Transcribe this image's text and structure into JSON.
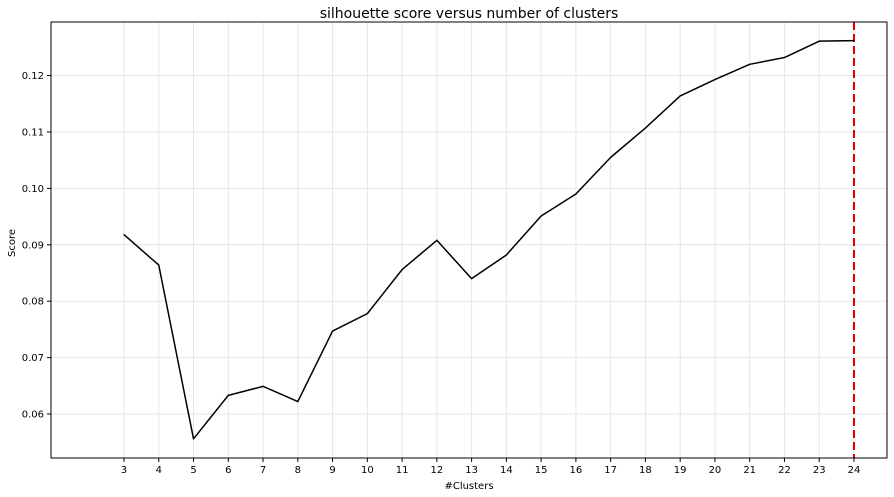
{
  "chart_data": {
    "type": "line",
    "title": "silhouette score versus number of clusters",
    "xlabel": "#Clusters",
    "ylabel": "Score",
    "x": [
      3,
      4,
      5,
      6,
      7,
      8,
      9,
      10,
      11,
      12,
      13,
      14,
      15,
      16,
      17,
      18,
      19,
      20,
      21,
      22,
      23,
      24
    ],
    "series": [
      {
        "values": [
          0.0918,
          0.0864,
          0.0556,
          0.0633,
          0.0649,
          0.0622,
          0.0747,
          0.0778,
          0.0856,
          0.0908,
          0.084,
          0.0882,
          0.0951,
          0.099,
          0.1055,
          0.1107,
          0.1164,
          0.1193,
          0.122,
          0.1232,
          0.1261,
          0.1262
        ],
        "color": "#000000"
      }
    ],
    "xlim": [
      0.9,
      24.95
    ],
    "ylim": [
      0.0522,
      0.1295
    ],
    "xticks": [
      3,
      4,
      5,
      6,
      7,
      8,
      9,
      10,
      11,
      12,
      13,
      14,
      15,
      16,
      17,
      18,
      19,
      20,
      21,
      22,
      23,
      24
    ],
    "yticks": [
      0.06,
      0.07,
      0.08,
      0.09,
      0.1,
      0.11,
      0.12
    ],
    "ytick_labels": [
      "0.06",
      "0.07",
      "0.08",
      "0.09",
      "0.10",
      "0.11",
      "0.12"
    ],
    "grid": true,
    "vline": {
      "x": 24,
      "color": "#e00000",
      "style": "dashed"
    }
  }
}
